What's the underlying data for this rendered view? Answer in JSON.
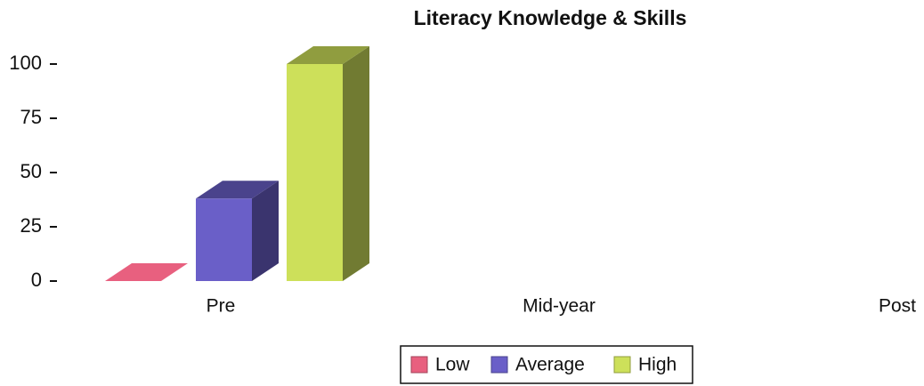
{
  "chart_data": {
    "type": "bar3d",
    "title": "Literacy Knowledge & Skills",
    "categories": [
      "Pre",
      "Mid-year",
      "Post"
    ],
    "series": [
      {
        "name": "Low",
        "color": "#e8607f",
        "values": [
          0,
          null,
          null
        ]
      },
      {
        "name": "Average",
        "color": "#6a5fc8",
        "values": [
          38,
          null,
          null
        ]
      },
      {
        "name": "High",
        "color": "#cde05a",
        "values": [
          100,
          null,
          null
        ]
      }
    ],
    "ylim": [
      0,
      100
    ],
    "yticks": [
      0,
      25,
      50,
      75,
      100
    ],
    "legend": "bottom"
  }
}
